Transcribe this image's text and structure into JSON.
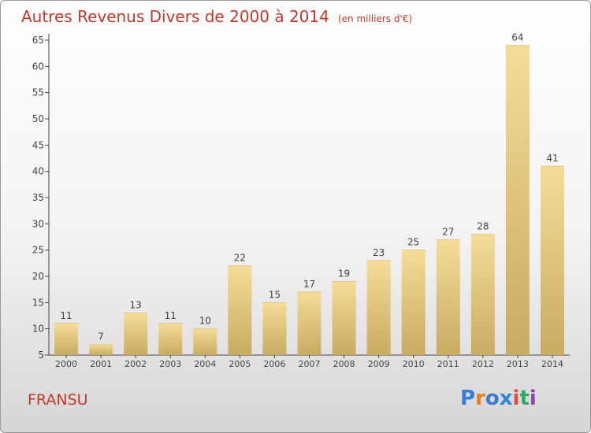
{
  "header": {
    "title": "Autres Revenus Divers de 2000 à 2014",
    "unit": "(en milliers d'€)"
  },
  "footer": {
    "commune": "FRANSU",
    "logo": {
      "letters": [
        "P",
        "r",
        "o",
        "x",
        "i",
        "t",
        "i"
      ],
      "colors": [
        "#3a7bd5",
        "#e67e22",
        "#3a7bd5",
        "#2e86de",
        "#e74c3c",
        "#27ae60",
        "#8e44ad"
      ]
    }
  },
  "chart_data": {
    "type": "bar",
    "categories": [
      "2000",
      "2001",
      "2002",
      "2003",
      "2004",
      "2005",
      "2006",
      "2007",
      "2008",
      "2009",
      "2010",
      "2011",
      "2012",
      "2013",
      "2014"
    ],
    "values": [
      11,
      7,
      13,
      11,
      10,
      22,
      15,
      17,
      19,
      23,
      25,
      27,
      28,
      64,
      41
    ],
    "ylim": [
      5,
      65
    ],
    "yticks": [
      5,
      10,
      15,
      20,
      25,
      30,
      35,
      40,
      45,
      50,
      55,
      60,
      65
    ],
    "grid": false,
    "legend": "none",
    "colors": {
      "bar_light": "#f5dc98",
      "bar_dark": "#c9ab62",
      "label": "#444444",
      "axis": "#444444"
    }
  }
}
